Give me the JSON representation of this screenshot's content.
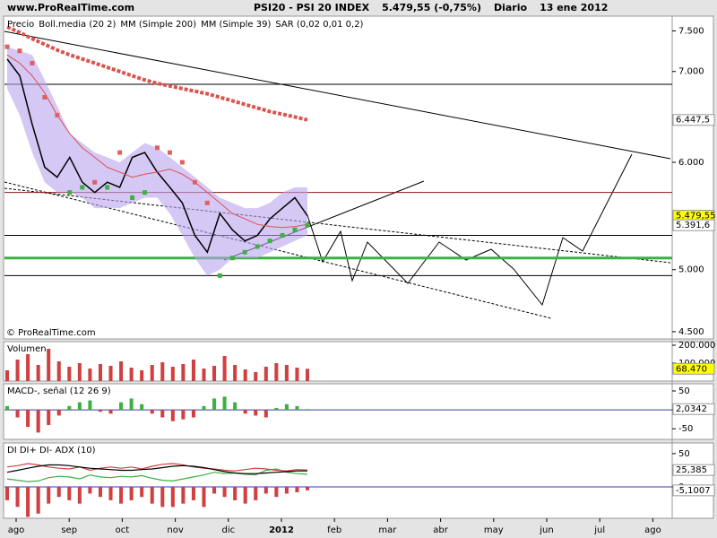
{
  "header": {
    "site": "www.ProRealTime.com",
    "title": "PSI20 - PSI 20 INDEX",
    "quote": "5.479,55 (-0,75%)",
    "period": "Diario",
    "date": "13 ene 2012"
  },
  "watermark": "© ProRealTime.com",
  "x_axis": {
    "categories": [
      "ago",
      "sep",
      "oct",
      "nov",
      "dic",
      "2012",
      "feb",
      "mar",
      "abr",
      "may",
      "jun",
      "jul",
      "ago"
    ]
  },
  "chart_data": [
    {
      "type": "line",
      "log_scale": true,
      "ylim": [
        4445,
        7690
      ],
      "yticks": [
        {
          "value": 4500,
          "label": "4.500"
        },
        {
          "value": 5000,
          "label": "5.000"
        },
        {
          "value": 6000,
          "label": "6.000"
        },
        {
          "value": 7000,
          "label": "7.000"
        },
        {
          "value": 7500,
          "label": "7.500"
        }
      ],
      "hlines": [
        6850,
        5700,
        5300,
        5100,
        4950
      ],
      "hline_colors": [
        "#000000",
        "#8b1a1a",
        "#000000",
        "#3cb043",
        "#000000"
      ],
      "series": [
        {
          "name": "Precio",
          "style": "line",
          "color": "#000000",
          "values": [
            7150,
            6950,
            6400,
            5950,
            5850,
            6050,
            5800,
            5700,
            5800,
            5750,
            6050,
            6100,
            5900,
            5750,
            5600,
            5300,
            5150,
            5500,
            5350,
            5250,
            5300,
            5450,
            5550,
            5650,
            5479.55
          ],
          "last_label": "5.479,55",
          "label_fill": "#ffff00"
        },
        {
          "name": "Boll.media (20 2)",
          "style": "band",
          "color": "#b9a3ec",
          "upper": [
            7300,
            7250,
            7200,
            6900,
            6600,
            6300,
            6200,
            6100,
            6050,
            6000,
            6100,
            6200,
            6150,
            6050,
            5950,
            5850,
            5750,
            5650,
            5600,
            5550,
            5550,
            5600,
            5700,
            5750,
            5750
          ],
          "lower": [
            6800,
            6500,
            6100,
            5800,
            5700,
            5700,
            5650,
            5550,
            5550,
            5550,
            5600,
            5650,
            5650,
            5500,
            5300,
            5100,
            4950,
            5000,
            5100,
            5100,
            5100,
            5150,
            5200,
            5250,
            5300
          ]
        },
        {
          "name": "MM (Simple 200)",
          "style": "thick",
          "color": "#d9534f",
          "values": [
            7550,
            7480,
            7400,
            7330,
            7260,
            7200,
            7150,
            7100,
            7050,
            7000,
            6950,
            6900,
            6860,
            6830,
            6800,
            6770,
            6740,
            6700,
            6660,
            6620,
            6580,
            6540,
            6510,
            6480,
            6447.5
          ],
          "last_label": "6.447,5",
          "label_fill": "#ffffff"
        },
        {
          "name": "MM (Simple 39)",
          "style": "line",
          "color": "#e05050",
          "values": [
            7200,
            7100,
            6950,
            6750,
            6500,
            6300,
            6150,
            6050,
            5950,
            5900,
            5850,
            5880,
            5900,
            5930,
            5880,
            5800,
            5700,
            5600,
            5500,
            5450,
            5400,
            5380,
            5370,
            5380,
            5400
          ]
        },
        {
          "name": "SAR (0,02 0,01 0,2)",
          "style": "dots",
          "color": "#3cb043",
          "above_color": "#e06060",
          "values": [
            7300,
            7250,
            7100,
            6700,
            6500,
            5700,
            5750,
            5800,
            5750,
            6100,
            5650,
            5700,
            6150,
            6100,
            6000,
            5800,
            5600,
            4950,
            5100,
            5150,
            5200,
            5250,
            5300,
            5350,
            5391.6
          ],
          "last_label": "5.391,6",
          "label_fill": "#ffffff"
        }
      ]
    },
    {
      "type": "bar",
      "title": "Volumen",
      "color": "#d04040",
      "ylim": [
        0,
        220000
      ],
      "yticks": [
        {
          "value": 100000,
          "label": "100.000"
        },
        {
          "value": 200000,
          "label": "200.000"
        }
      ],
      "values": [
        60000,
        120000,
        150000,
        90000,
        180000,
        110000,
        80000,
        100000,
        70000,
        95000,
        85000,
        110000,
        75000,
        60000,
        90000,
        105000,
        80000,
        95000,
        120000,
        70000,
        85000,
        140000,
        90000,
        65000,
        50000,
        80000,
        100000,
        90000,
        75000,
        68470
      ],
      "last_label": "68.470",
      "label_fill": "#ffff00"
    },
    {
      "type": "bar",
      "title": "MACD-, señal (12 26 9)",
      "color": "#3cb043",
      "negative_color": "#d04040",
      "ylim": [
        -78,
        69
      ],
      "yticks": [
        -50,
        0,
        50
      ],
      "values": [
        10,
        -20,
        -45,
        -60,
        -40,
        -15,
        10,
        20,
        25,
        -5,
        -10,
        20,
        30,
        15,
        -10,
        -20,
        -30,
        -25,
        -20,
        10,
        30,
        35,
        20,
        -10,
        -15,
        -20,
        5,
        15,
        10,
        2.0342
      ],
      "last_label": "2,0342",
      "label_fill": "#ffffff"
    },
    {
      "type": "dmi",
      "title": "DI DI+ DI- ADX (10)",
      "ylim": [
        -47,
        66
      ],
      "yticks": [
        0,
        50
      ],
      "series": [
        {
          "style": "bar",
          "color": "#d04040",
          "values": [
            -20,
            -30,
            -45,
            -40,
            -25,
            -15,
            -20,
            -25,
            -10,
            -15,
            -20,
            -25,
            -20,
            -15,
            -25,
            -30,
            -30,
            -25,
            -20,
            -30,
            -10,
            -15,
            -20,
            -25,
            -20,
            -10,
            -15,
            -10,
            -8,
            -5.1007
          ],
          "last_label": "-5,1007",
          "label_fill": "#ffffff"
        },
        {
          "style": "line",
          "color": "#3cb043",
          "values": [
            12,
            10,
            8,
            9,
            14,
            16,
            15,
            12,
            18,
            15,
            14,
            16,
            15,
            17,
            13,
            10,
            9,
            12,
            15,
            18,
            22,
            20,
            21,
            19,
            18,
            25,
            27,
            22,
            20,
            19
          ]
        },
        {
          "style": "line",
          "color": "#d04040",
          "values": [
            30,
            32,
            35,
            33,
            30,
            28,
            27,
            30,
            25,
            28,
            30,
            28,
            30,
            27,
            31,
            34,
            35,
            33,
            30,
            28,
            27,
            25,
            24,
            26,
            28,
            27,
            25,
            24,
            26,
            25.385
          ],
          "last_label": "25,385",
          "label_fill": "#ffffff"
        },
        {
          "style": "line",
          "color": "#000000",
          "values": [
            22,
            25,
            28,
            31,
            33,
            33,
            32,
            30,
            28,
            27,
            26,
            25,
            25,
            26,
            27,
            29,
            31,
            32,
            31,
            29,
            26,
            23,
            21,
            20,
            20,
            21,
            22,
            23,
            24,
            24
          ]
        }
      ]
    }
  ]
}
